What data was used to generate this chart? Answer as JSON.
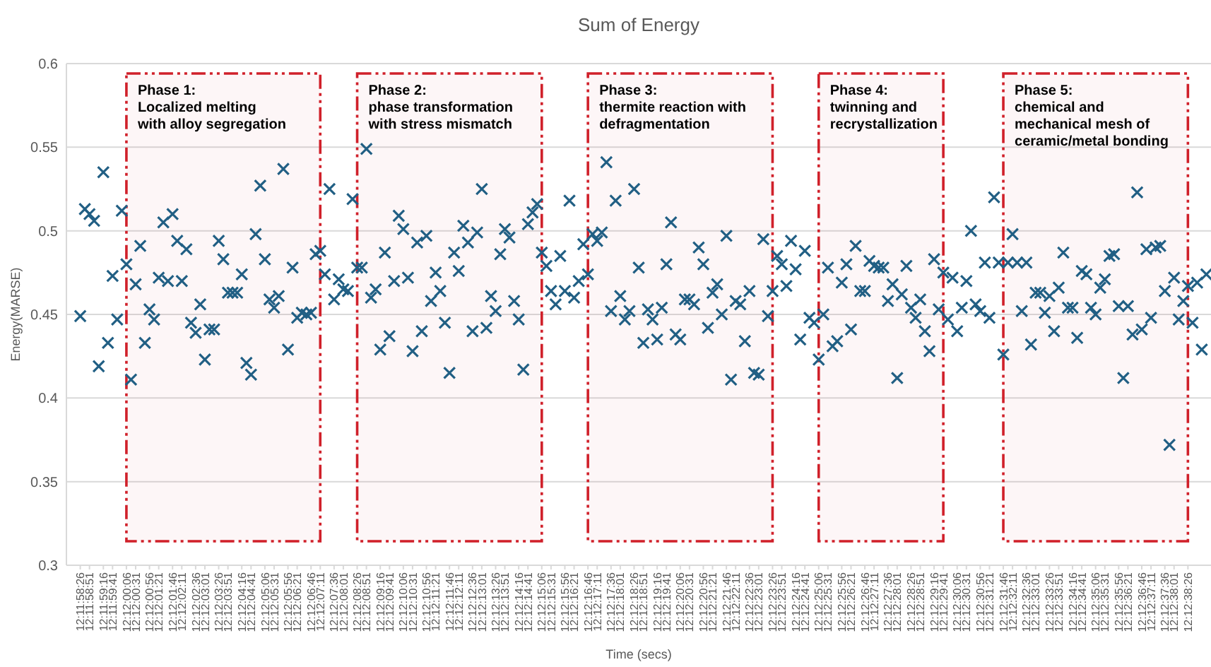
{
  "chart_data": {
    "type": "scatter",
    "title": "Sum of Energy",
    "xlabel": "Time (secs)",
    "ylabel": "Energy(MARSE)",
    "categories": [
      "12:11:58:26",
      null,
      "12:11:58:51",
      null,
      null,
      "12:11:59:16",
      null,
      "12:11:59:41",
      null,
      null,
      "12:12:00:06",
      null,
      "12:12:00:31",
      null,
      null,
      "12:12:00:56",
      null,
      "12:12:01:21",
      null,
      null,
      "12:12:01:46",
      null,
      "12:12:02:11",
      null,
      null,
      "12:12:02:36",
      null,
      "12:12:03:01",
      null,
      null,
      "12:12:03:26",
      null,
      "12:12:03:51",
      null,
      null,
      "12:12:04:16",
      null,
      "12:12:04:41",
      null,
      null,
      "12:12:05:06",
      null,
      "12:12:05:31",
      null,
      null,
      "12:12:05:56",
      null,
      "12:12:06:21",
      null,
      null,
      "12:12:06:46",
      null,
      "12:12:07:11",
      null,
      null,
      "12:12:07:36",
      null,
      "12:12:08:01",
      null,
      null,
      "12:12:08:26",
      null,
      "12:12:08:51",
      null,
      null,
      "12:12:09:16",
      null,
      "12:12:09:41",
      null,
      null,
      "12:12:10:06",
      null,
      "12:12:10:31",
      null,
      null,
      "12:12:10:56",
      null,
      "12:12:11:21",
      null,
      null,
      "12:12:11:46",
      null,
      "12:12:12:11",
      null,
      null,
      "12:12:12:36",
      null,
      "12:12:13:01",
      null,
      null,
      "12:12:13:26",
      null,
      "12:12:13:51",
      null,
      null,
      "12:12:14:16",
      null,
      "12:12:14:41",
      null,
      null,
      "12:12:15:06",
      null,
      "12:12:15:31",
      null,
      null,
      "12:12:15:56",
      null,
      "12:12:16:21",
      null,
      null,
      "12:12:16:46",
      null,
      "12:12:17:11",
      null,
      null,
      "12:12:17:36",
      null,
      "12:12:18:01",
      null,
      null,
      "12:12:18:26",
      null,
      "12:12:18:51",
      null,
      null,
      "12:12:19:16",
      null,
      "12:12:19:41",
      null,
      null,
      "12:12:20:06",
      null,
      "12:12:20:31",
      null,
      null,
      "12:12:20:56",
      null,
      "12:12:21:21",
      null,
      null,
      "12:12:21:46",
      null,
      "12:12:22:11",
      null,
      null,
      "12:12:22:36",
      null,
      "12:12:23:01",
      null,
      null,
      "12:12:23:26",
      null,
      "12:12:23:51",
      null,
      null,
      "12:12:24:16",
      null,
      "12:12:24:41",
      null,
      null,
      "12:12:25:06",
      null,
      "12:12:25:31",
      null,
      null,
      "12:12:25:56",
      null,
      "12:12:26:21",
      null,
      null,
      "12:12:26:46",
      null,
      "12:12:27:11",
      null,
      null,
      "12:12:27:36",
      null,
      "12:12:28:01",
      null,
      null,
      "12:12:28:26",
      null,
      "12:12:28:51",
      null,
      null,
      "12:12:29:16",
      null,
      "12:12:29:41",
      null,
      null,
      "12:12:30:06",
      null,
      "12:12:30:31",
      null,
      null,
      "12:12:30:56",
      null,
      "12:12:31:21",
      null,
      null,
      "12:12:31:46",
      null,
      "12:12:32:11",
      null,
      null,
      "12:12:32:36",
      null,
      "12:12:33:01",
      null,
      null,
      "12:12:33:26",
      null,
      "12:12:33:51",
      null,
      null,
      "12:12:34:16",
      null,
      "12:12:34:41",
      null,
      null,
      "12:12:35:06",
      null,
      "12:12:35:31",
      null,
      null,
      "12:12:35:56",
      null,
      "12:12:36:21",
      null,
      null,
      "12:12:36:46",
      null,
      "12:12:37:11",
      null,
      null,
      "12:12:37:36",
      null,
      "12:12:38:01",
      null,
      null,
      "12:12:38:26",
      null,
      null,
      null,
      null
    ],
    "series": [
      {
        "color": "#215f84",
        "values": [
          0.449,
          0.513,
          0.51,
          0.506,
          0.419,
          0.535,
          0.433,
          0.473,
          0.447,
          0.512,
          0.48,
          0.411,
          0.468,
          0.491,
          0.433,
          0.453,
          0.447,
          0.472,
          0.505,
          0.47,
          0.51,
          0.494,
          0.47,
          0.489,
          0.445,
          0.439,
          0.456,
          0.423,
          0.441,
          0.441,
          0.494,
          0.483,
          0.463,
          0.463,
          0.463,
          0.474,
          0.421,
          0.414,
          0.498,
          0.527,
          0.483,
          0.459,
          0.454,
          0.461,
          0.537,
          0.429,
          0.478,
          0.448,
          0.451,
          0.45,
          0.451,
          0.486,
          0.488,
          0.474,
          0.525,
          0.459,
          0.471,
          0.465,
          0.464,
          0.519,
          0.478,
          0.478,
          0.549,
          0.46,
          0.465,
          0.429,
          0.487,
          0.437,
          0.47,
          0.509,
          0.501,
          0.472,
          0.428,
          0.493,
          0.44,
          0.497,
          0.458,
          0.475,
          0.464,
          0.445,
          0.415,
          0.487,
          0.476,
          0.503,
          0.493,
          0.44,
          0.499,
          0.525,
          0.442,
          0.461,
          0.452,
          0.486,
          0.501,
          0.496,
          0.458,
          0.447,
          0.417,
          0.504,
          0.511,
          0.516,
          0.487,
          0.479,
          0.464,
          0.456,
          0.485,
          0.464,
          0.518,
          0.46,
          0.47,
          0.492,
          0.474,
          0.498,
          0.494,
          0.499,
          0.541,
          0.452,
          0.518,
          0.461,
          0.447,
          0.452,
          0.525,
          0.478,
          0.433,
          0.453,
          0.447,
          0.435,
          0.454,
          0.48,
          0.505,
          0.438,
          0.435,
          0.459,
          0.459,
          0.456,
          0.49,
          0.48,
          0.442,
          0.463,
          0.468,
          0.45,
          0.497,
          0.411,
          0.458,
          0.456,
          0.434,
          0.464,
          0.415,
          0.414,
          0.495,
          0.449,
          0.464,
          0.485,
          0.48,
          0.467,
          0.494,
          0.477,
          0.435,
          0.488,
          0.448,
          0.445,
          0.423,
          0.45,
          0.478,
          0.431,
          0.434,
          0.469,
          0.48,
          0.441,
          0.491,
          0.464,
          0.464,
          0.482,
          0.479,
          0.478,
          0.478,
          0.458,
          0.468,
          0.412,
          0.462,
          0.479,
          0.454,
          0.448,
          0.459,
          0.44,
          0.428,
          0.483,
          0.453,
          0.475,
          0.447,
          0.472,
          0.44,
          0.454,
          0.47,
          0.5,
          0.456,
          0.452,
          0.481,
          0.448,
          0.52,
          0.481,
          0.426,
          0.481,
          0.498,
          0.481,
          0.452,
          0.481,
          0.432,
          0.463,
          0.463,
          0.451,
          0.461,
          0.44,
          0.466,
          0.487,
          0.454,
          0.454,
          0.436,
          0.476,
          0.474,
          0.454,
          0.45,
          0.466,
          0.471,
          0.485,
          0.486,
          0.455,
          0.412,
          0.455,
          0.438,
          0.523,
          0.441,
          0.489,
          0.448,
          0.49,
          0.491,
          0.464,
          0.372,
          0.472,
          0.447,
          0.458,
          0.467,
          0.445,
          0.469,
          0.429,
          0.474
        ]
      }
    ],
    "ylim": [
      0.3,
      0.6
    ],
    "yticks": [
      0.3,
      0.35,
      0.4,
      0.45,
      0.5,
      0.55,
      0.6
    ],
    "grid": "y",
    "marker": "cross",
    "bands": [
      {
        "axis": "x",
        "from": "12:12:00:06",
        "to": "12:12:07:11",
        "label": "Phase 1:\nLocalized melting\nwith alloy segregation",
        "color": "#d0202a"
      },
      {
        "axis": "x",
        "from": "12:12:08:26",
        "to": "12:12:15:06",
        "label": "Phase 2:\nphase transformation\nwith stress mismatch",
        "color": "#d0202a"
      },
      {
        "axis": "x",
        "from": "12:12:16:46",
        "to": "12:12:23:26",
        "label": "Phase 3:\nthermite reaction with\ndefragmentation",
        "color": "#d0202a"
      },
      {
        "axis": "x",
        "from": "12:12:25:06",
        "to": "12:12:29:41",
        "label": "Phase 4:\ntwinning and\nrecrystallization",
        "color": "#d0202a"
      },
      {
        "axis": "x",
        "from": "12:12:31:46",
        "to": "12:12:38:26",
        "label": "Phase 5:\nchemical and\nmechanical mesh of\nceramic/metal bonding",
        "color": "#d0202a"
      }
    ]
  }
}
